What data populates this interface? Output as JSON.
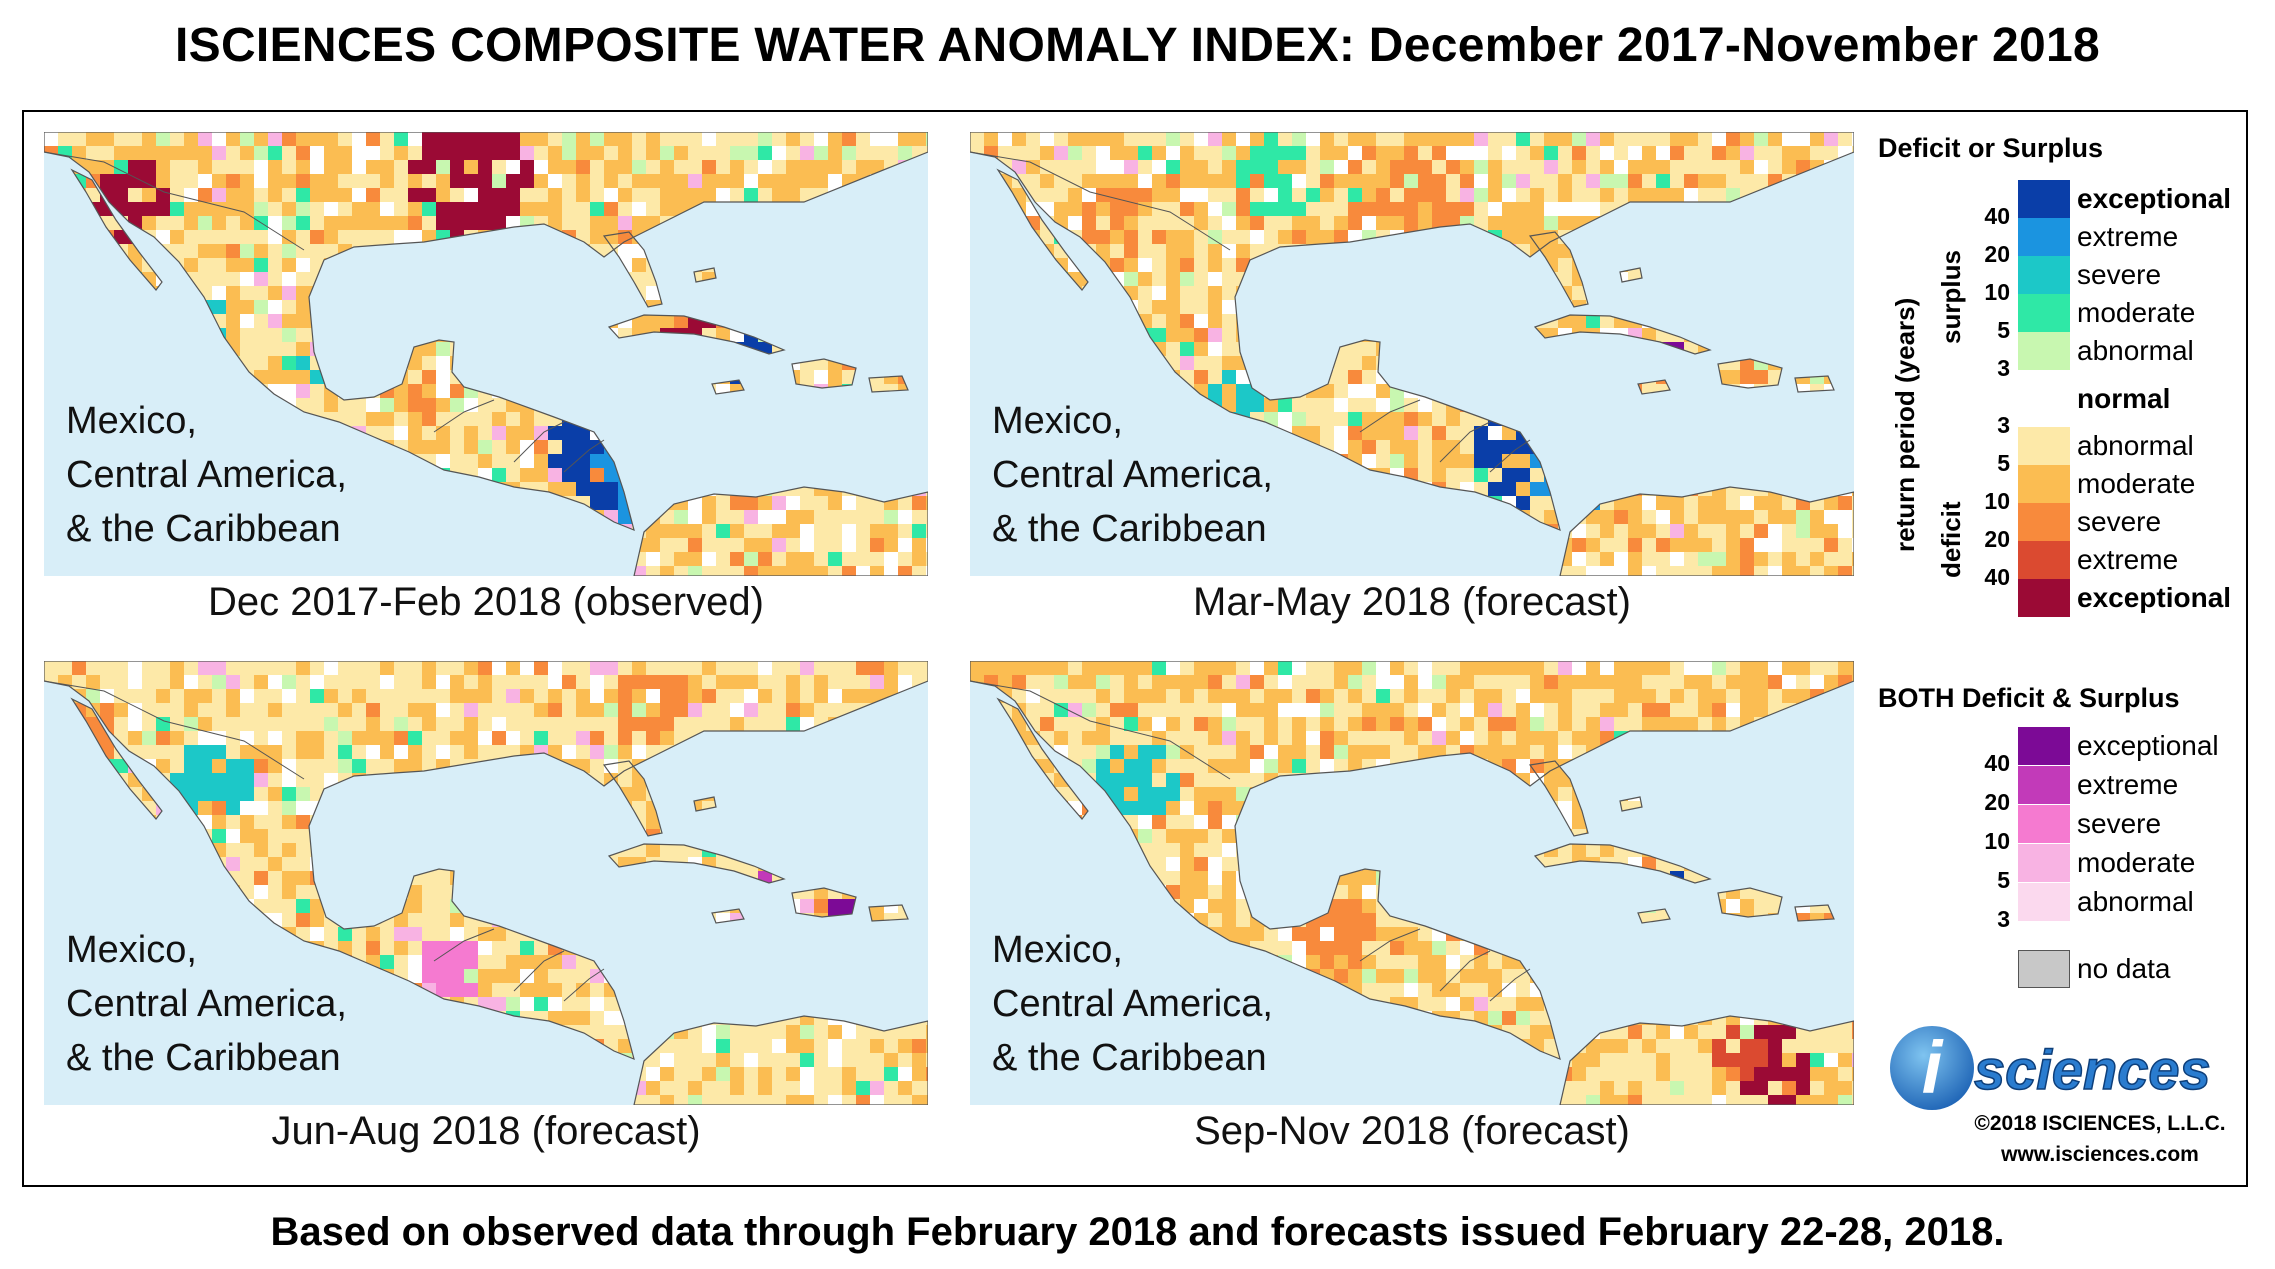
{
  "title": "ISCIENCES COMPOSITE WATER ANOMALY INDEX: December 2017-November 2018",
  "footer": "Based on observed data through February 2018 and forecasts issued February 22-28, 2018.",
  "region_label": [
    "Mexico,",
    "Central America,",
    "& the Caribbean"
  ],
  "panels": [
    {
      "caption": "Dec 2017-Feb 2018 (observed)"
    },
    {
      "caption": "Mar-May 2018 (forecast)"
    },
    {
      "caption": "Jun-Aug 2018 (forecast)"
    },
    {
      "caption": "Sep-Nov 2018 (forecast)"
    }
  ],
  "legend": {
    "title": "Deficit or Surplus",
    "axis_label": "return period (years)",
    "surplus_label": "surplus",
    "deficit_label": "deficit",
    "surplus": [
      {
        "label": "exceptional",
        "color": "#0a3ea8"
      },
      {
        "label": "extreme",
        "color": "#1b94e0"
      },
      {
        "label": "severe",
        "color": "#1cc8c8"
      },
      {
        "label": "moderate",
        "color": "#2fe8a6"
      },
      {
        "label": "abnormal",
        "color": "#c8f7b0"
      }
    ],
    "normal": {
      "label": "normal",
      "color": "#ffffff"
    },
    "deficit": [
      {
        "label": "abnormal",
        "color": "#fde9a8"
      },
      {
        "label": "moderate",
        "color": "#fbbd52"
      },
      {
        "label": "severe",
        "color": "#f88a3c"
      },
      {
        "label": "extreme",
        "color": "#db4a30"
      },
      {
        "label": "exceptional",
        "color": "#9b0a35"
      }
    ],
    "surplus_ticks": [
      "40",
      "20",
      "10",
      "5",
      "3"
    ],
    "deficit_ticks": [
      "3",
      "5",
      "10",
      "20",
      "40"
    ],
    "both_title": "BOTH Deficit & Surplus",
    "both": [
      {
        "label": "exceptional",
        "color": "#7c0a96"
      },
      {
        "label": "extreme",
        "color": "#c23ab9"
      },
      {
        "label": "severe",
        "color": "#f57ad0"
      },
      {
        "label": "moderate",
        "color": "#f8b3e3"
      },
      {
        "label": "abnormal",
        "color": "#fbd9ee"
      }
    ],
    "both_ticks": [
      "40",
      "20",
      "10",
      "5",
      "3"
    ],
    "no_data": {
      "label": "no data",
      "color": "#c8c8c8"
    }
  },
  "logo": {
    "letter": "i",
    "text": "sciences"
  },
  "copyright": "©2018 ISCIENCES, L.L.C.",
  "website": "www.isciences.com"
}
